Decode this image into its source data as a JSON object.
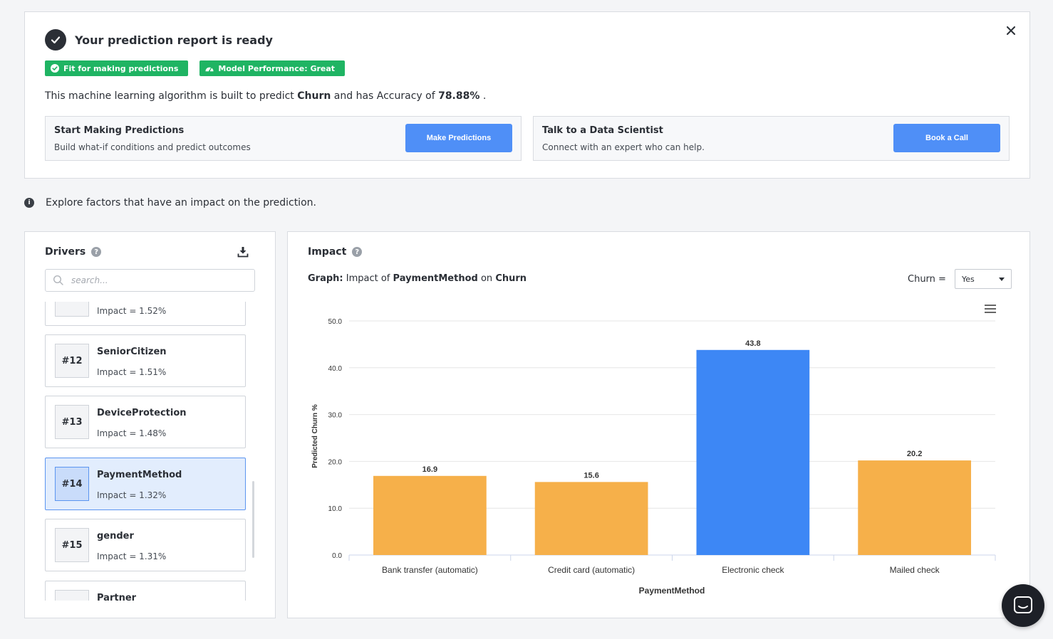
{
  "report": {
    "title": "Your prediction report is ready",
    "badges": [
      {
        "label": "Fit for making predictions",
        "icon": "check-circle-icon"
      },
      {
        "label": "Model Performance: Great",
        "icon": "gauge-icon"
      }
    ],
    "desc_prefix": "This machine learning algorithm is built to predict ",
    "target": "Churn",
    "desc_middle": " and has Accuracy of ",
    "accuracy": "78.88%",
    "desc_suffix": " .",
    "actions": [
      {
        "title": "Start Making Predictions",
        "subtitle": "Build what-if conditions and predict outcomes",
        "button": "Make Predictions"
      },
      {
        "title": "Talk to a Data Scientist",
        "subtitle": "Connect with an expert who can help.",
        "button": "Book a Call"
      }
    ]
  },
  "explore_text": "Explore factors that have an impact on the prediction.",
  "drivers": {
    "title": "Drivers",
    "search_placeholder": "search...",
    "items": [
      {
        "rank": "",
        "name": "",
        "impact": "Impact = 1.52%"
      },
      {
        "rank": "#12",
        "name": "SeniorCitizen",
        "impact": "Impact = 1.51%"
      },
      {
        "rank": "#13",
        "name": "DeviceProtection",
        "impact": "Impact = 1.48%"
      },
      {
        "rank": "#14",
        "name": "PaymentMethod",
        "impact": "Impact = 1.32%",
        "selected": true
      },
      {
        "rank": "#15",
        "name": "gender",
        "impact": "Impact = 1.31%"
      },
      {
        "rank": "",
        "name": "Partner",
        "impact": ""
      }
    ]
  },
  "impact": {
    "title": "Impact",
    "graph_label": "Graph:",
    "graph_prefix": " Impact of ",
    "feature": "PaymentMethod",
    "graph_on": " on ",
    "target": "Churn",
    "filter_label": "Churn =",
    "filter_value": "Yes"
  },
  "chart_data": {
    "type": "bar",
    "categories": [
      "Bank transfer (automatic)",
      "Credit card (automatic)",
      "Electronic check",
      "Mailed check"
    ],
    "values": [
      16.9,
      15.6,
      43.8,
      20.2
    ],
    "data_labels": [
      "16.9",
      "15.6",
      "43.8",
      "20.2"
    ],
    "highlight_index": 2,
    "xlabel": "PaymentMethod",
    "ylabel": "Predicted Churn %",
    "ylim": [
      0,
      50
    ],
    "yticks": [
      0,
      10,
      20,
      30,
      40,
      50
    ],
    "ytick_labels": [
      "0.0",
      "10.0",
      "20.0",
      "30.0",
      "40.0",
      "50.0"
    ],
    "grid": true,
    "colors": {
      "default": "#f6b04a",
      "highlight": "#3d87f5"
    }
  }
}
